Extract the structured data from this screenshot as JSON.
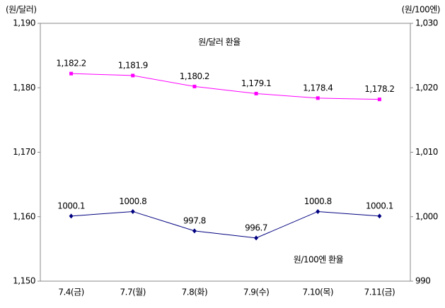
{
  "chart_data": {
    "type": "line",
    "y_label": "(원/달러)",
    "y2_label": "(원/100엔)",
    "categories": [
      "7.4(금)",
      "7.7(월)",
      "7.8(화)",
      "7.9(수)",
      "7.10(목)",
      "7.11(금)"
    ],
    "series": [
      {
        "name": "원/달러 환율",
        "color": "#ff00ff",
        "marker": "square",
        "values": [
          1182.2,
          1181.9,
          1180.2,
          1179.1,
          1178.4,
          1178.2
        ],
        "value_labels": [
          "1,182.2",
          "1,181.9",
          "1,180.2",
          "1,179.1",
          "1,178.4",
          "1,178.2"
        ]
      },
      {
        "name": "원/100엔 환율",
        "color": "#000080",
        "marker": "diamond",
        "axis": "y2",
        "values": [
          1000.1,
          1000.8,
          997.8,
          996.7,
          1000.8,
          1000.1
        ]
      }
    ],
    "ylim": [
      1150,
      1190
    ],
    "yticks": [
      {
        "value": 1150,
        "label": "1,150"
      },
      {
        "value": 1160,
        "label": "1,160"
      },
      {
        "value": 1170,
        "label": "1,170"
      },
      {
        "value": 1180,
        "label": "1,180"
      },
      {
        "value": 1190,
        "label": "1,190"
      }
    ],
    "y2lim": [
      990,
      1030
    ],
    "y2ticks": [
      990,
      {
        "value": 1000,
        "label": "1,000"
      },
      {
        "value": 1010,
        "label": "1,010"
      },
      {
        "value": 1020,
        "label": "1,020"
      },
      {
        "value": 1030,
        "label": "1,030"
      }
    ],
    "grid": false
  }
}
